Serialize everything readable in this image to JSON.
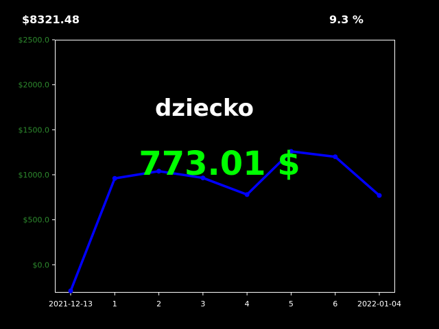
{
  "header": {
    "total_value": "$8321.48",
    "percent_change": "9.3 %"
  },
  "overlay": {
    "name": "dziecko",
    "amount": "773.01 $"
  },
  "colors": {
    "background": "#000000",
    "line": "#0000ff",
    "ytick_text": "#2e8b2e",
    "amount_text": "#00ff00",
    "text": "#ffffff"
  },
  "chart_data": {
    "type": "line",
    "x": [
      "2021-12-13",
      "1",
      "2",
      "3",
      "4",
      "5",
      "6",
      "2022-01-04"
    ],
    "values": [
      -290,
      960,
      1040,
      965,
      780,
      1260,
      1200,
      770
    ],
    "ylim": [
      -310,
      2500
    ],
    "yticks": [
      0,
      500,
      1000,
      1500,
      2000,
      2500
    ],
    "ytick_labels": [
      "$0.0",
      "$500.0",
      "$1000.0",
      "$1500.0",
      "$2000.0",
      "$2500.0"
    ],
    "grid": false
  }
}
